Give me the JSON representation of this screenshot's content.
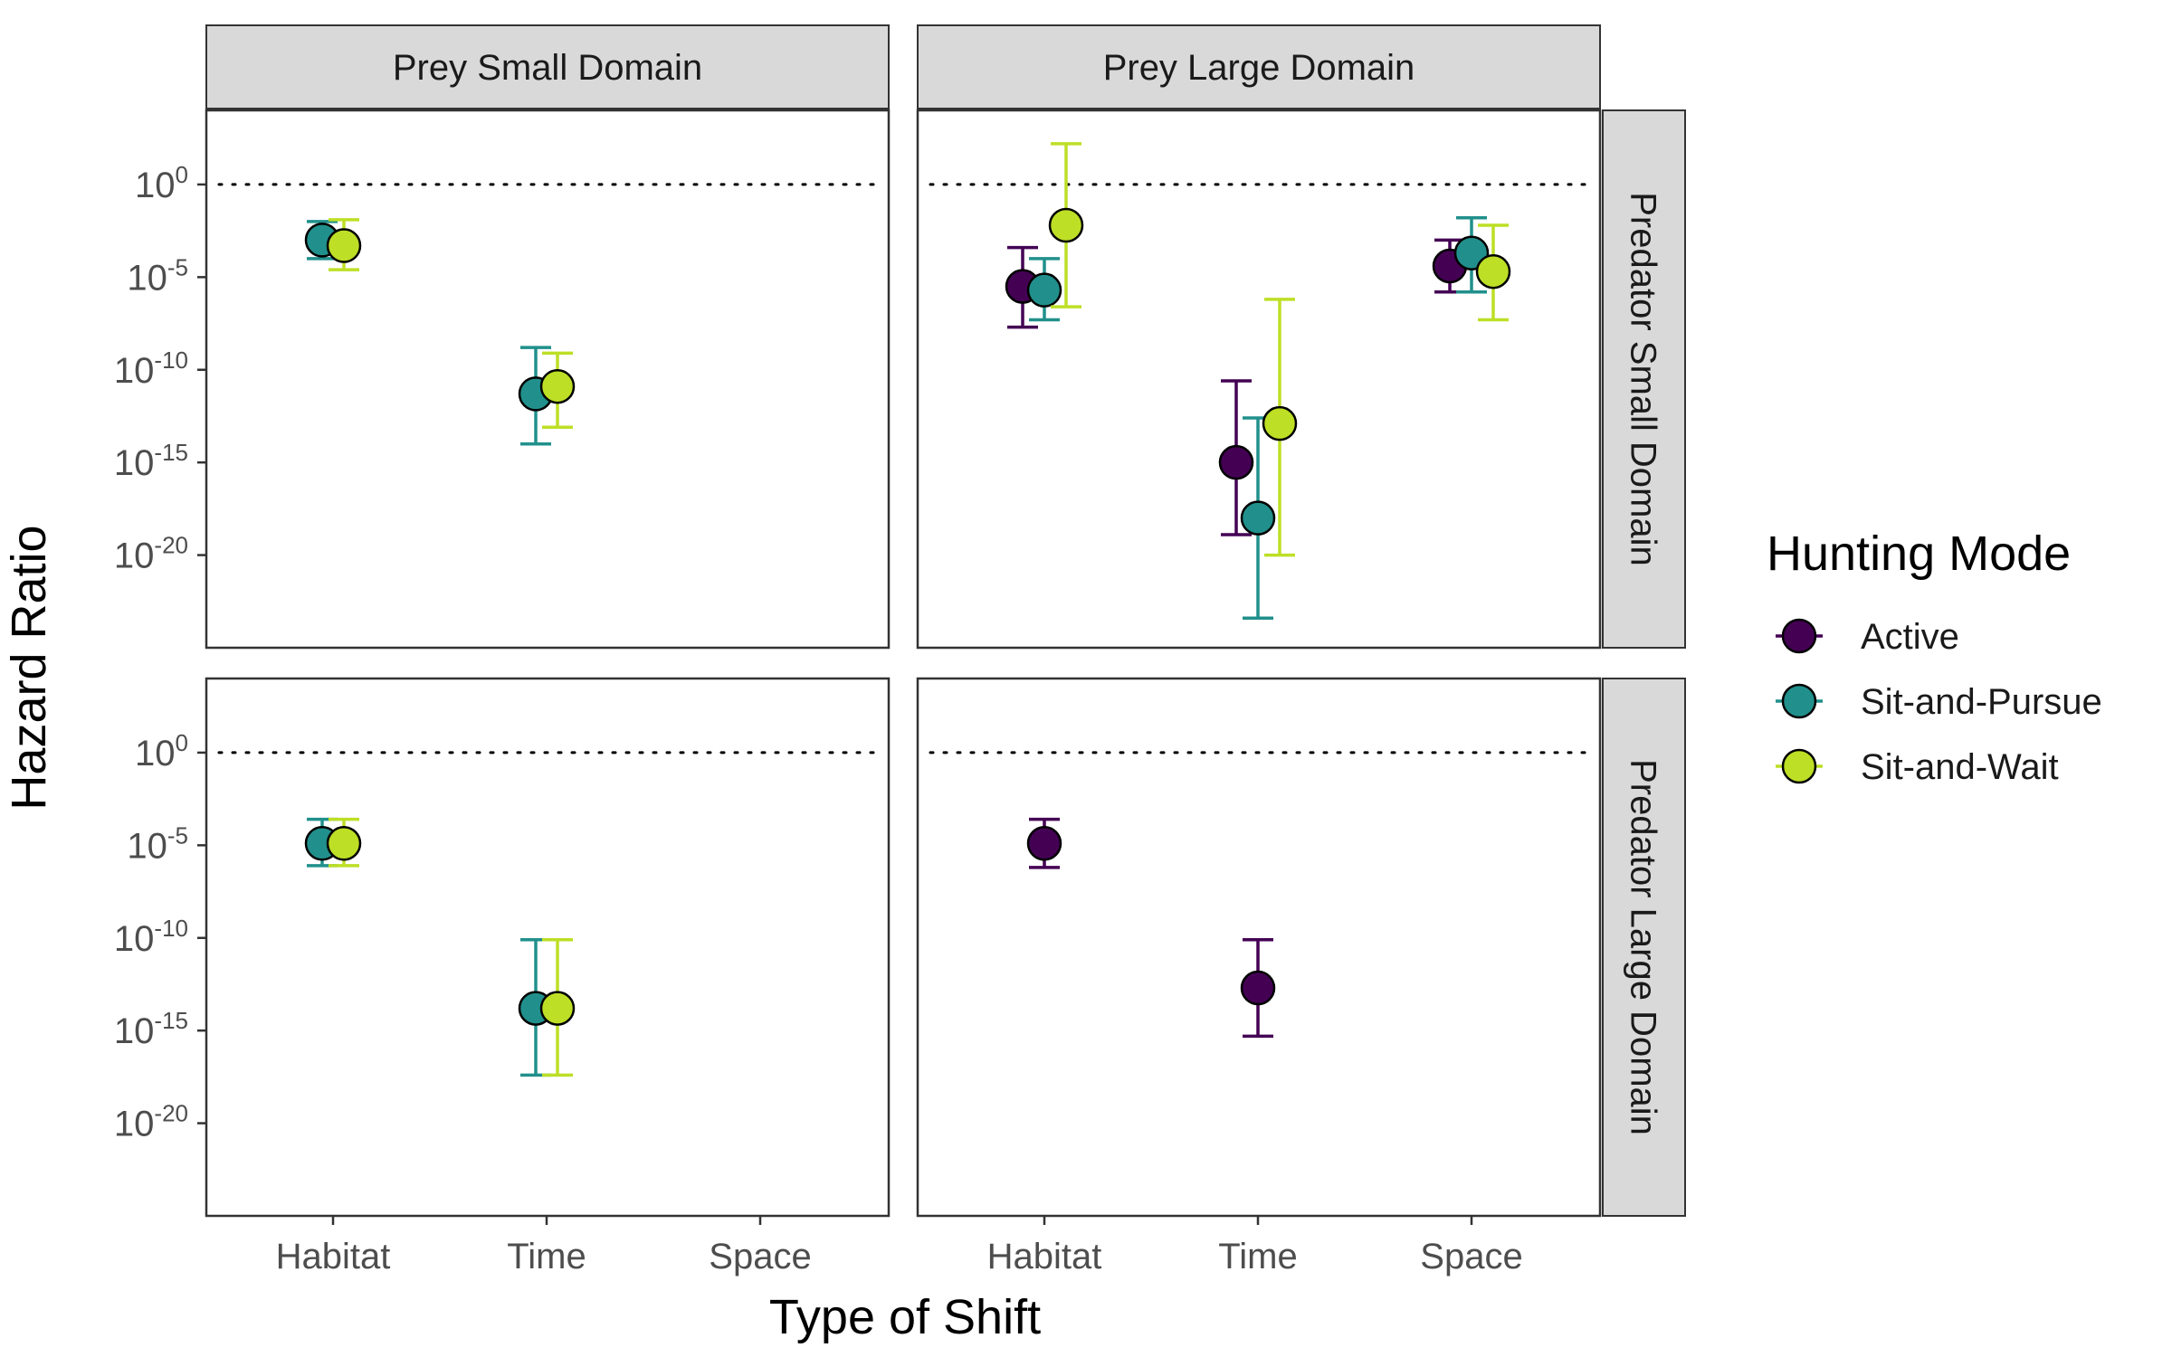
{
  "chart_data": {
    "type": "scatter",
    "subtype": "faceted point-range (estimate with error bars)",
    "xlabel": "Type of Shift",
    "ylabel": "Hazard Ratio",
    "y_scale": "log10",
    "ylim_log10": [
      -25,
      4
    ],
    "y_ticks": [
      {
        "base": "10",
        "exp": "0",
        "log10": 0
      },
      {
        "base": "10",
        "exp": "-5",
        "log10": -5
      },
      {
        "base": "10",
        "exp": "-10",
        "log10": -10
      },
      {
        "base": "10",
        "exp": "-15",
        "log10": -15
      },
      {
        "base": "10",
        "exp": "-20",
        "log10": -20
      }
    ],
    "categories": [
      "Habitat",
      "Time",
      "Space"
    ],
    "reference_line": {
      "log10": 0,
      "style": "dotted"
    },
    "column_facets": [
      "Prey Small Domain",
      "Prey Large Domain"
    ],
    "row_facets": [
      "Predator Small Domain",
      "Predator Large Domain"
    ],
    "legend": {
      "title": "Hunting Mode",
      "position": "right",
      "items": [
        {
          "label": "Active",
          "color": "#440154"
        },
        {
          "label": "Sit-and-Pursue",
          "color": "#21908c"
        },
        {
          "label": "Sit-and-Wait",
          "color": "#bddf26"
        }
      ]
    },
    "grid": false,
    "panels": [
      {
        "row": 0,
        "col": 0,
        "points": [
          {
            "category": "Habitat",
            "mode": "Sit-and-Pursue",
            "est_log10": -3.0,
            "lo_log10": -4.0,
            "hi_log10": -2.0
          },
          {
            "category": "Habitat",
            "mode": "Sit-and-Wait",
            "est_log10": -3.3,
            "lo_log10": -4.6,
            "hi_log10": -1.9
          },
          {
            "category": "Time",
            "mode": "Sit-and-Pursue",
            "est_log10": -11.3,
            "lo_log10": -14.0,
            "hi_log10": -8.8
          },
          {
            "category": "Time",
            "mode": "Sit-and-Wait",
            "est_log10": -10.9,
            "lo_log10": -13.1,
            "hi_log10": -9.1
          }
        ]
      },
      {
        "row": 0,
        "col": 1,
        "points": [
          {
            "category": "Habitat",
            "mode": "Active",
            "est_log10": -5.5,
            "lo_log10": -7.7,
            "hi_log10": -3.4
          },
          {
            "category": "Habitat",
            "mode": "Sit-and-Pursue",
            "est_log10": -5.7,
            "lo_log10": -7.3,
            "hi_log10": -4.0
          },
          {
            "category": "Habitat",
            "mode": "Sit-and-Wait",
            "est_log10": -2.2,
            "lo_log10": -6.6,
            "hi_log10": 2.2
          },
          {
            "category": "Time",
            "mode": "Active",
            "est_log10": -15.0,
            "lo_log10": -18.9,
            "hi_log10": -10.6
          },
          {
            "category": "Time",
            "mode": "Sit-and-Pursue",
            "est_log10": -18.0,
            "lo_log10": -23.4,
            "hi_log10": -12.6
          },
          {
            "category": "Time",
            "mode": "Sit-and-Wait",
            "est_log10": -12.9,
            "lo_log10": -20.0,
            "hi_log10": -6.2
          },
          {
            "category": "Space",
            "mode": "Active",
            "est_log10": -4.4,
            "lo_log10": -5.8,
            "hi_log10": -3.0
          },
          {
            "category": "Space",
            "mode": "Sit-and-Pursue",
            "est_log10": -3.7,
            "lo_log10": -5.8,
            "hi_log10": -1.8
          },
          {
            "category": "Space",
            "mode": "Sit-and-Wait",
            "est_log10": -4.7,
            "lo_log10": -7.3,
            "hi_log10": -2.2
          }
        ]
      },
      {
        "row": 1,
        "col": 0,
        "points": [
          {
            "category": "Habitat",
            "mode": "Sit-and-Pursue",
            "est_log10": -4.9,
            "lo_log10": -6.1,
            "hi_log10": -3.6
          },
          {
            "category": "Habitat",
            "mode": "Sit-and-Wait",
            "est_log10": -4.9,
            "lo_log10": -6.1,
            "hi_log10": -3.6
          },
          {
            "category": "Time",
            "mode": "Sit-and-Pursue",
            "est_log10": -13.8,
            "lo_log10": -17.4,
            "hi_log10": -10.1
          },
          {
            "category": "Time",
            "mode": "Sit-and-Wait",
            "est_log10": -13.8,
            "lo_log10": -17.4,
            "hi_log10": -10.1
          }
        ]
      },
      {
        "row": 1,
        "col": 1,
        "points": [
          {
            "category": "Habitat",
            "mode": "Active",
            "est_log10": -4.9,
            "lo_log10": -6.2,
            "hi_log10": -3.6
          },
          {
            "category": "Time",
            "mode": "Active",
            "est_log10": -12.7,
            "lo_log10": -15.3,
            "hi_log10": -10.1
          }
        ]
      }
    ]
  }
}
